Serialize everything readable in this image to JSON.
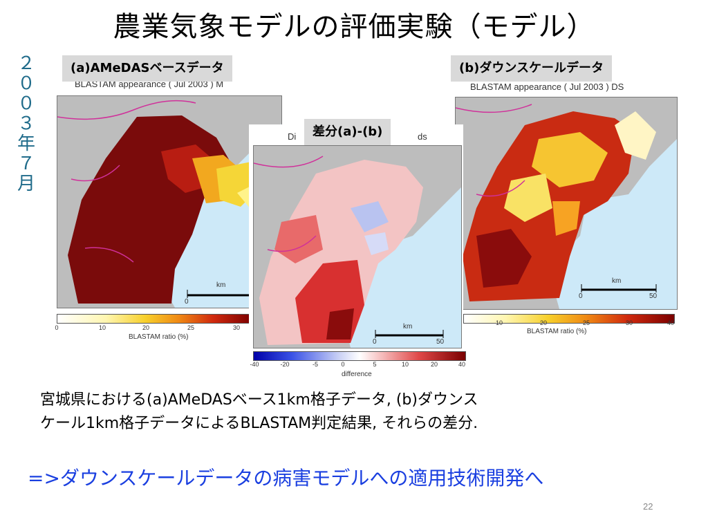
{
  "title": "農業気象モデルの評価実験（モデル）",
  "date_vertical": [
    "２",
    "０",
    "０",
    "３",
    "年",
    "７",
    "月"
  ],
  "panels": {
    "a": {
      "caption": "(a)AMeDASベースデータ",
      "chart_title": "BLASTAM appearance ( Jul 2003 ) M",
      "scale_label": "km",
      "scale_start": "0",
      "colorbar_ticks": [
        "0",
        "10",
        "20",
        "25",
        "30"
      ],
      "colorbar_label": "BLASTAM ratio (%)"
    },
    "diff": {
      "caption": "差分(a)-(b)",
      "title_left": "Di",
      "title_right": "ds",
      "scale_label": "km",
      "scale_start": "0",
      "scale_end": "50",
      "colorbar_ticks": [
        "-40",
        "-20",
        "-5",
        "0",
        "5",
        "10",
        "20",
        "40"
      ],
      "colorbar_label": "difference"
    },
    "b": {
      "caption": "(b)ダウンスケールデータ",
      "chart_title": "BLASTAM appearance ( Jul 2003 ) DS",
      "scale_label": "km",
      "scale_start": "0",
      "scale_end": "50",
      "colorbar_ticks": [
        "10",
        "20",
        "25",
        "30",
        "40"
      ],
      "colorbar_label": "BLASTAM ratio (%)"
    }
  },
  "description": {
    "line1": "宮城県における(a)AMeDASベース1km格子データ, (b)ダウンス",
    "line2": "ケール1km格子データによるBLASTAM判定結果, それらの差分."
  },
  "conclusion": "=>ダウンスケールデータの病害モデルへの適用技術開発へ",
  "slide_number": "22",
  "colors": {
    "date_text": "#1f6b8a",
    "conclusion_text": "#1a3fe0",
    "sea": "#cde9f8",
    "land_gray": "#bdbdbd",
    "boundary": "#d0309a"
  }
}
